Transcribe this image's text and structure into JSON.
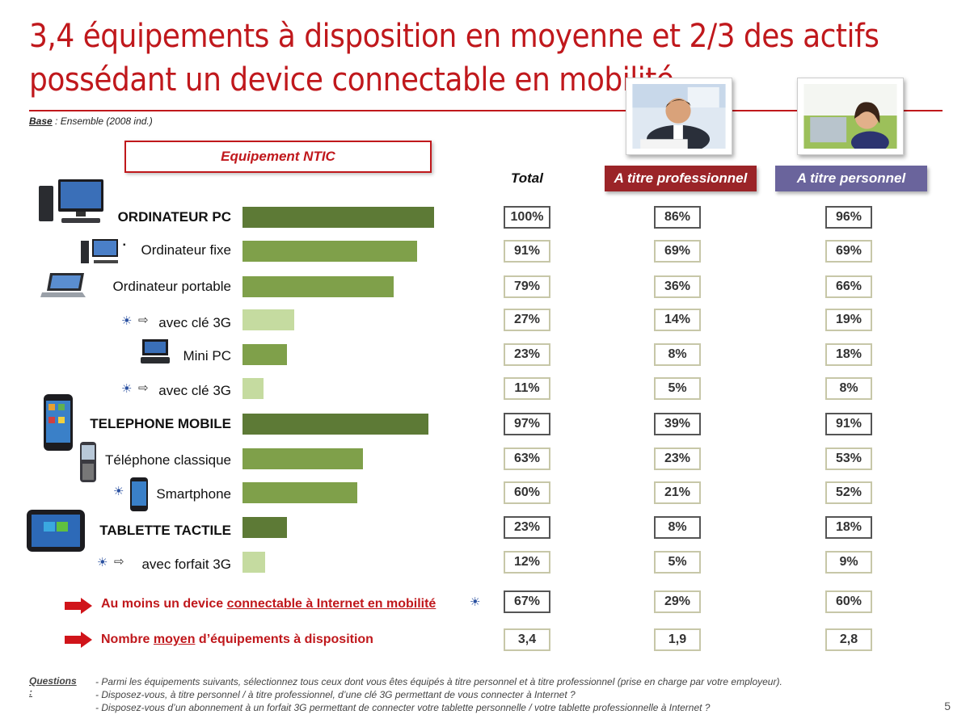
{
  "slide": {
    "title": "3,4 équipements à disposition en moyenne et 2/3 des actifs possédant un device connectable en mobilité.",
    "base_label": "Base",
    "base_text": " : Ensemble (2008 ind.)",
    "panel_title": "Equipement NTIC",
    "page_number": "5"
  },
  "columns": {
    "total": "Total",
    "pro": "A titre professionnel",
    "perso": "A titre personnel"
  },
  "chart_data": {
    "type": "bar",
    "categories": [
      "ORDINATEUR PC",
      "Ordinateur fixe",
      "Ordinateur portable",
      "avec clé 3G",
      "Mini PC",
      "avec clé 3G",
      "TELEPHONE MOBILE",
      "Téléphone classique",
      "Smartphone",
      "TABLETTE TACTILE",
      "avec forfait 3G"
    ],
    "values": [
      100,
      91,
      79,
      27,
      23,
      11,
      97,
      63,
      60,
      23,
      12
    ],
    "orientation": "horizontal",
    "xlim": [
      0,
      100
    ],
    "colors": [
      "#5d7a36",
      "#7fa04a",
      "#7fa04a",
      "#c5dba0",
      "#7fa04a",
      "#c5dba0",
      "#5d7a36",
      "#7fa04a",
      "#7fa04a",
      "#5d7a36",
      "#c5dba0"
    ]
  },
  "rows": [
    {
      "label": "ORDINATEUR PC",
      "total": "100%",
      "pro": "86%",
      "perso": "96%",
      "bold": true
    },
    {
      "label": "Ordinateur fixe",
      "total": "91%",
      "pro": "69%",
      "perso": "69%",
      "bold": false
    },
    {
      "label": "Ordinateur portable",
      "total": "79%",
      "pro": "36%",
      "perso": "66%",
      "bold": false
    },
    {
      "label": "avec clé 3G",
      "total": "27%",
      "pro": "14%",
      "perso": "19%",
      "bold": false
    },
    {
      "label": "Mini PC",
      "total": "23%",
      "pro": "8%",
      "perso": "18%",
      "bold": false
    },
    {
      "label": "avec clé 3G",
      "total": "11%",
      "pro": "5%",
      "perso": "8%",
      "bold": false
    },
    {
      "label": "TELEPHONE MOBILE",
      "total": "97%",
      "pro": "39%",
      "perso": "91%",
      "bold": true
    },
    {
      "label": "Téléphone classique",
      "total": "63%",
      "pro": "23%",
      "perso": "53%",
      "bold": false
    },
    {
      "label": "Smartphone",
      "total": "60%",
      "pro": "21%",
      "perso": "52%",
      "bold": false
    },
    {
      "label": "TABLETTE TACTILE",
      "total": "23%",
      "pro": "8%",
      "perso": "18%",
      "bold": true
    },
    {
      "label": "avec forfait 3G",
      "total": "12%",
      "pro": "5%",
      "perso": "9%",
      "bold": false
    }
  ],
  "summary": {
    "mobile_pre": "Au moins un device ",
    "mobile_link": "connectable à Internet en mobilité",
    "mobile_total": "67%",
    "mobile_pro": "29%",
    "mobile_perso": "60%",
    "avg_pre": "Nombre ",
    "avg_link": "moyen",
    "avg_post": " d’équipements à disposition",
    "avg_total": "3,4",
    "avg_pro": "1,9",
    "avg_perso": "2,8"
  },
  "questions": {
    "label": "Questions :",
    "lines": [
      "- Parmi les équipements suivants, sélectionnez tous ceux dont vous êtes équipés à titre personnel et à titre professionnel (prise en charge par votre employeur).",
      "- Disposez-vous, à titre personnel / à titre professionnel, d’une clé 3G permettant de vous connecter à Internet ?",
      "- Disposez-vous d’un abonnement à un forfait 3G permettant de connecter votre tablette personnelle / votre tablette professionnelle à Internet ?"
    ]
  },
  "icons": [
    "desktop-computer-icon",
    "desktop-small-icon",
    "laptop-icon",
    "mobility-sun-icon",
    "hint-arrow-icon",
    "netbook-icon",
    "smartphone-icon",
    "classic-phone-icon",
    "tablet-icon",
    "red-arrow-icon"
  ]
}
